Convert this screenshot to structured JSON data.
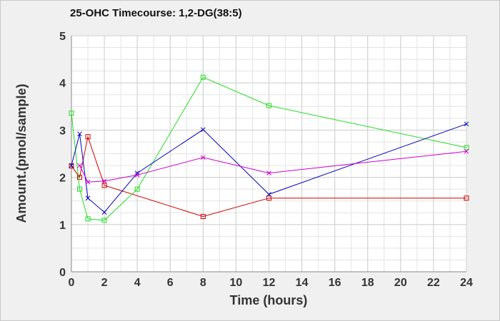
{
  "chart_data": {
    "type": "line",
    "title": "25-OHC Timecourse: 1,2-DG(38:5)",
    "xlabel": "Time (hours)",
    "ylabel": "Amount.(pmol/sample)",
    "xlim": [
      0,
      24
    ],
    "ylim": [
      0,
      5
    ],
    "xticks": [
      0,
      2,
      4,
      6,
      8,
      10,
      12,
      14,
      16,
      18,
      20,
      22,
      24
    ],
    "yticks": [
      0,
      1,
      2,
      3,
      4,
      5
    ],
    "grid": true,
    "legend": "none",
    "series": [
      {
        "color": "#cc0000",
        "marker": "square",
        "x": [
          0,
          0.5,
          1,
          2,
          8,
          12,
          24
        ],
        "y": [
          2.24,
          2.0,
          2.86,
          1.83,
          1.17,
          1.56,
          1.56
        ]
      },
      {
        "color": "#22dd22",
        "marker": "square",
        "x": [
          0,
          0.5,
          1,
          2,
          4,
          8,
          12,
          24
        ],
        "y": [
          3.36,
          1.75,
          1.12,
          1.09,
          1.75,
          4.12,
          3.52,
          2.63
        ]
      },
      {
        "color": "#0000bb",
        "marker": "x",
        "x": [
          0,
          0.5,
          1,
          2,
          4,
          8,
          12,
          24
        ],
        "y": [
          2.25,
          2.92,
          1.56,
          1.26,
          2.09,
          3.01,
          1.64,
          3.13
        ]
      },
      {
        "color": "#cc00cc",
        "marker": "x",
        "x": [
          0.5,
          1,
          2,
          4,
          8,
          12,
          24
        ],
        "y": [
          2.25,
          1.9,
          1.92,
          2.05,
          2.42,
          2.09,
          2.55
        ]
      }
    ]
  }
}
